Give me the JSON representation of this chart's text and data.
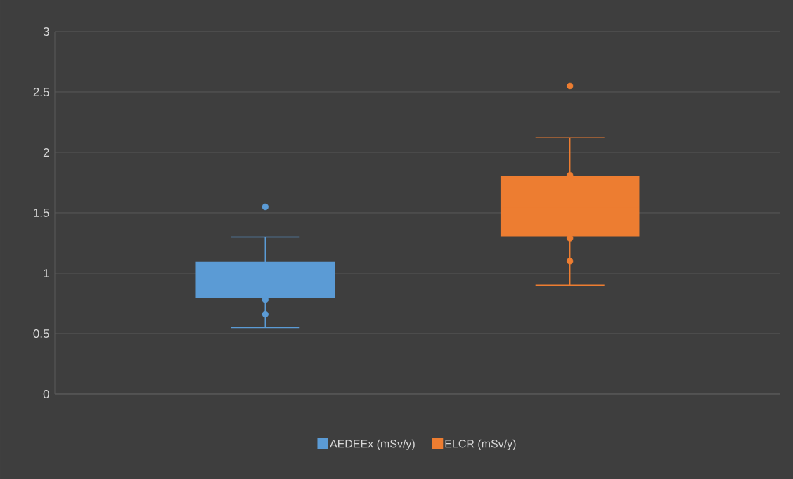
{
  "chart_data": {
    "type": "box",
    "categories": [
      null
    ],
    "series": [
      {
        "name": "AEDEEx (mSv/y)",
        "color": "#5b9bd5",
        "boxes": [
          {
            "low": 0.55,
            "q1": 0.8,
            "median": 0.95,
            "q3": 1.09,
            "high": 1.3,
            "outliers": [
              1.55,
              0.78,
              0.66
            ]
          }
        ]
      },
      {
        "name": "ELCR (mSv/y)",
        "color": "#ed7d31",
        "boxes": [
          {
            "low": 0.9,
            "q1": 1.31,
            "median": 1.55,
            "q3": 1.8,
            "high": 2.12,
            "outliers": [
              2.55,
              1.81,
              1.29,
              1.1
            ]
          }
        ]
      }
    ],
    "ylim": [
      0,
      3
    ],
    "yticks": [
      0,
      0.5,
      1,
      1.5,
      2,
      2.5,
      3
    ],
    "grid": "y",
    "legend": "bottom"
  }
}
